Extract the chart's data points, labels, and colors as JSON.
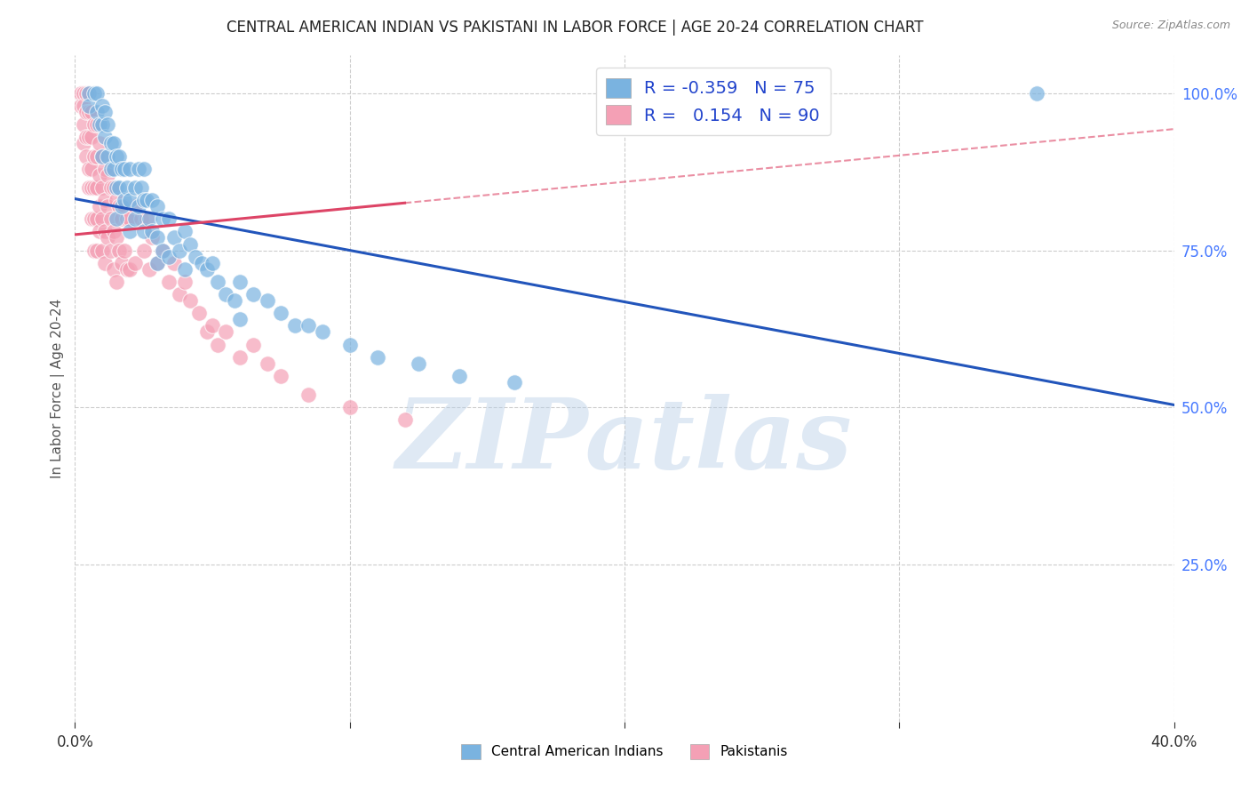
{
  "title": "CENTRAL AMERICAN INDIAN VS PAKISTANI IN LABOR FORCE | AGE 20-24 CORRELATION CHART",
  "source": "Source: ZipAtlas.com",
  "ylabel": "In Labor Force | Age 20-24",
  "xlim": [
    0.0,
    0.4
  ],
  "ylim": [
    0.0,
    1.06
  ],
  "blue_color": "#7ab3e0",
  "pink_color": "#f4a0b5",
  "blue_line_color": "#2255bb",
  "pink_line_color": "#dd4466",
  "pink_line_dashed_color": "#dd8899",
  "watermark": "ZIPatlas",
  "background_color": "#ffffff",
  "grid_color": "#cccccc",
  "title_color": "#222222",
  "axis_label_color": "#555555",
  "ytick_color": "#4477ff",
  "blue_intercept": 0.832,
  "blue_slope": -0.82,
  "pink_intercept": 0.775,
  "pink_slope": 0.42,
  "blue_scatter": [
    [
      0.005,
      1.0
    ],
    [
      0.005,
      0.98
    ],
    [
      0.007,
      1.0
    ],
    [
      0.008,
      1.0
    ],
    [
      0.008,
      0.97
    ],
    [
      0.009,
      0.95
    ],
    [
      0.01,
      0.98
    ],
    [
      0.01,
      0.95
    ],
    [
      0.01,
      0.9
    ],
    [
      0.011,
      0.97
    ],
    [
      0.011,
      0.93
    ],
    [
      0.012,
      0.95
    ],
    [
      0.012,
      0.9
    ],
    [
      0.013,
      0.92
    ],
    [
      0.013,
      0.88
    ],
    [
      0.014,
      0.92
    ],
    [
      0.014,
      0.88
    ],
    [
      0.015,
      0.9
    ],
    [
      0.015,
      0.85
    ],
    [
      0.015,
      0.8
    ],
    [
      0.016,
      0.9
    ],
    [
      0.016,
      0.85
    ],
    [
      0.017,
      0.88
    ],
    [
      0.017,
      0.82
    ],
    [
      0.018,
      0.88
    ],
    [
      0.018,
      0.83
    ],
    [
      0.019,
      0.85
    ],
    [
      0.02,
      0.88
    ],
    [
      0.02,
      0.83
    ],
    [
      0.02,
      0.78
    ],
    [
      0.022,
      0.85
    ],
    [
      0.022,
      0.8
    ],
    [
      0.023,
      0.88
    ],
    [
      0.023,
      0.82
    ],
    [
      0.024,
      0.85
    ],
    [
      0.025,
      0.88
    ],
    [
      0.025,
      0.83
    ],
    [
      0.025,
      0.78
    ],
    [
      0.026,
      0.83
    ],
    [
      0.027,
      0.8
    ],
    [
      0.028,
      0.83
    ],
    [
      0.028,
      0.78
    ],
    [
      0.03,
      0.82
    ],
    [
      0.03,
      0.77
    ],
    [
      0.03,
      0.73
    ],
    [
      0.032,
      0.8
    ],
    [
      0.032,
      0.75
    ],
    [
      0.034,
      0.8
    ],
    [
      0.034,
      0.74
    ],
    [
      0.036,
      0.77
    ],
    [
      0.038,
      0.75
    ],
    [
      0.04,
      0.78
    ],
    [
      0.04,
      0.72
    ],
    [
      0.042,
      0.76
    ],
    [
      0.044,
      0.74
    ],
    [
      0.046,
      0.73
    ],
    [
      0.048,
      0.72
    ],
    [
      0.05,
      0.73
    ],
    [
      0.052,
      0.7
    ],
    [
      0.055,
      0.68
    ],
    [
      0.058,
      0.67
    ],
    [
      0.06,
      0.7
    ],
    [
      0.06,
      0.64
    ],
    [
      0.065,
      0.68
    ],
    [
      0.07,
      0.67
    ],
    [
      0.075,
      0.65
    ],
    [
      0.08,
      0.63
    ],
    [
      0.085,
      0.63
    ],
    [
      0.09,
      0.62
    ],
    [
      0.1,
      0.6
    ],
    [
      0.11,
      0.58
    ],
    [
      0.125,
      0.57
    ],
    [
      0.14,
      0.55
    ],
    [
      0.16,
      0.54
    ],
    [
      0.35,
      1.0
    ]
  ],
  "pink_scatter": [
    [
      0.002,
      1.0
    ],
    [
      0.002,
      0.98
    ],
    [
      0.003,
      1.0
    ],
    [
      0.003,
      0.98
    ],
    [
      0.003,
      0.95
    ],
    [
      0.003,
      0.92
    ],
    [
      0.004,
      1.0
    ],
    [
      0.004,
      0.97
    ],
    [
      0.004,
      0.93
    ],
    [
      0.004,
      0.9
    ],
    [
      0.005,
      1.0
    ],
    [
      0.005,
      0.97
    ],
    [
      0.005,
      0.93
    ],
    [
      0.005,
      0.88
    ],
    [
      0.005,
      0.85
    ],
    [
      0.006,
      0.97
    ],
    [
      0.006,
      0.93
    ],
    [
      0.006,
      0.88
    ],
    [
      0.006,
      0.85
    ],
    [
      0.006,
      0.8
    ],
    [
      0.007,
      0.95
    ],
    [
      0.007,
      0.9
    ],
    [
      0.007,
      0.85
    ],
    [
      0.007,
      0.8
    ],
    [
      0.007,
      0.75
    ],
    [
      0.008,
      0.95
    ],
    [
      0.008,
      0.9
    ],
    [
      0.008,
      0.85
    ],
    [
      0.008,
      0.8
    ],
    [
      0.008,
      0.75
    ],
    [
      0.009,
      0.92
    ],
    [
      0.009,
      0.87
    ],
    [
      0.009,
      0.82
    ],
    [
      0.009,
      0.78
    ],
    [
      0.01,
      0.9
    ],
    [
      0.01,
      0.85
    ],
    [
      0.01,
      0.8
    ],
    [
      0.01,
      0.75
    ],
    [
      0.011,
      0.88
    ],
    [
      0.011,
      0.83
    ],
    [
      0.011,
      0.78
    ],
    [
      0.011,
      0.73
    ],
    [
      0.012,
      0.87
    ],
    [
      0.012,
      0.82
    ],
    [
      0.012,
      0.77
    ],
    [
      0.013,
      0.85
    ],
    [
      0.013,
      0.8
    ],
    [
      0.013,
      0.75
    ],
    [
      0.014,
      0.85
    ],
    [
      0.014,
      0.78
    ],
    [
      0.014,
      0.72
    ],
    [
      0.015,
      0.83
    ],
    [
      0.015,
      0.77
    ],
    [
      0.015,
      0.7
    ],
    [
      0.016,
      0.82
    ],
    [
      0.016,
      0.75
    ],
    [
      0.017,
      0.8
    ],
    [
      0.017,
      0.73
    ],
    [
      0.018,
      0.82
    ],
    [
      0.018,
      0.75
    ],
    [
      0.019,
      0.8
    ],
    [
      0.019,
      0.72
    ],
    [
      0.02,
      0.8
    ],
    [
      0.02,
      0.72
    ],
    [
      0.022,
      0.82
    ],
    [
      0.022,
      0.73
    ],
    [
      0.024,
      0.8
    ],
    [
      0.025,
      0.75
    ],
    [
      0.026,
      0.8
    ],
    [
      0.027,
      0.72
    ],
    [
      0.028,
      0.77
    ],
    [
      0.03,
      0.73
    ],
    [
      0.032,
      0.75
    ],
    [
      0.034,
      0.7
    ],
    [
      0.036,
      0.73
    ],
    [
      0.038,
      0.68
    ],
    [
      0.04,
      0.7
    ],
    [
      0.042,
      0.67
    ],
    [
      0.045,
      0.65
    ],
    [
      0.048,
      0.62
    ],
    [
      0.05,
      0.63
    ],
    [
      0.052,
      0.6
    ],
    [
      0.055,
      0.62
    ],
    [
      0.06,
      0.58
    ],
    [
      0.065,
      0.6
    ],
    [
      0.07,
      0.57
    ],
    [
      0.075,
      0.55
    ],
    [
      0.085,
      0.52
    ],
    [
      0.1,
      0.5
    ],
    [
      0.12,
      0.48
    ]
  ]
}
